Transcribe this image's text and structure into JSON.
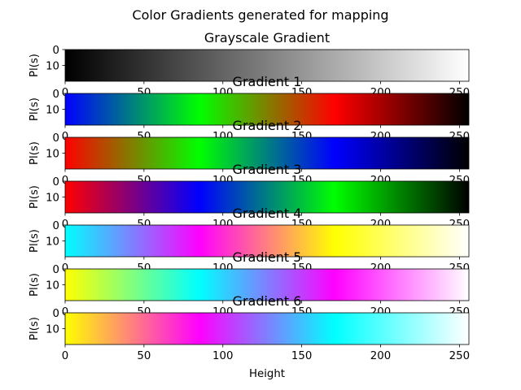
{
  "figure": {
    "suptitle": "Color Gradients generated for mapping",
    "xlabel": "Height"
  },
  "chart_data": [
    {
      "type": "heatmap",
      "title": "Grayscale Gradient",
      "ylabel": "Pl(s)",
      "xlim": [
        0,
        256
      ],
      "ylim": [
        20,
        0
      ],
      "xticks": [
        0,
        50,
        100,
        150,
        200,
        250
      ],
      "yticks": [
        0,
        10
      ],
      "colorstops": [
        {
          "pos": 0,
          "color": "#000000"
        },
        {
          "pos": 1,
          "color": "#ffffff"
        }
      ]
    },
    {
      "type": "heatmap",
      "title": "Gradient 1",
      "ylabel": "Pl(s)",
      "xlim": [
        0,
        256
      ],
      "ylim": [
        20,
        0
      ],
      "xticks": [
        0,
        50,
        100,
        150,
        200,
        250
      ],
      "yticks": [
        0,
        10
      ],
      "colorstops": [
        {
          "pos": 0,
          "color": "#0000ff"
        },
        {
          "pos": 0.333,
          "color": "#00ff00"
        },
        {
          "pos": 0.667,
          "color": "#ff0000"
        },
        {
          "pos": 1,
          "color": "#000000"
        }
      ]
    },
    {
      "type": "heatmap",
      "title": "Gradient 2",
      "ylabel": "Pl(s)",
      "xlim": [
        0,
        256
      ],
      "ylim": [
        20,
        0
      ],
      "xticks": [
        0,
        50,
        100,
        150,
        200,
        250
      ],
      "yticks": [
        0,
        10
      ],
      "colorstops": [
        {
          "pos": 0,
          "color": "#ff0000"
        },
        {
          "pos": 0.333,
          "color": "#00ff00"
        },
        {
          "pos": 0.667,
          "color": "#0000ff"
        },
        {
          "pos": 1,
          "color": "#000000"
        }
      ]
    },
    {
      "type": "heatmap",
      "title": "Gradient 3",
      "ylabel": "Pl(s)",
      "xlim": [
        0,
        256
      ],
      "ylim": [
        20,
        0
      ],
      "xticks": [
        0,
        50,
        100,
        150,
        200,
        250
      ],
      "yticks": [
        0,
        10
      ],
      "colorstops": [
        {
          "pos": 0,
          "color": "#ff0000"
        },
        {
          "pos": 0.333,
          "color": "#0000ff"
        },
        {
          "pos": 0.667,
          "color": "#00ff00"
        },
        {
          "pos": 1,
          "color": "#000000"
        }
      ]
    },
    {
      "type": "heatmap",
      "title": "Gradient 4",
      "ylabel": "Pl(s)",
      "xlim": [
        0,
        256
      ],
      "ylim": [
        20,
        0
      ],
      "xticks": [
        0,
        50,
        100,
        150,
        200,
        250
      ],
      "yticks": [
        0,
        10
      ],
      "colorstops": [
        {
          "pos": 0,
          "color": "#00ffff"
        },
        {
          "pos": 0.333,
          "color": "#ff00ff"
        },
        {
          "pos": 0.667,
          "color": "#ffff00"
        },
        {
          "pos": 1,
          "color": "#ffffff"
        }
      ]
    },
    {
      "type": "heatmap",
      "title": "Gradient 5",
      "ylabel": "Pl(s)",
      "xlim": [
        0,
        256
      ],
      "ylim": [
        20,
        0
      ],
      "xticks": [
        0,
        50,
        100,
        150,
        200,
        250
      ],
      "yticks": [
        0,
        10
      ],
      "colorstops": [
        {
          "pos": 0,
          "color": "#ffff00"
        },
        {
          "pos": 0.333,
          "color": "#00ffff"
        },
        {
          "pos": 0.667,
          "color": "#ff00ff"
        },
        {
          "pos": 1,
          "color": "#ffffff"
        }
      ]
    },
    {
      "type": "heatmap",
      "title": "Gradient 6",
      "ylabel": "Pl(s)",
      "xlim": [
        0,
        256
      ],
      "ylim": [
        20,
        0
      ],
      "xticks": [
        0,
        50,
        100,
        150,
        200,
        250
      ],
      "yticks": [
        0,
        10
      ],
      "colorstops": [
        {
          "pos": 0,
          "color": "#ffff00"
        },
        {
          "pos": 0.333,
          "color": "#ff00ff"
        },
        {
          "pos": 0.667,
          "color": "#00ffff"
        },
        {
          "pos": 1,
          "color": "#ffffff"
        }
      ]
    }
  ]
}
